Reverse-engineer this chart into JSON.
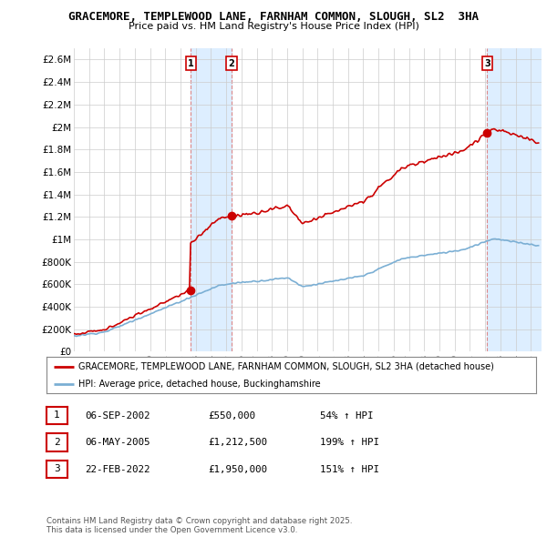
{
  "title_line1": "GRACEMORE, TEMPLEWOOD LANE, FARNHAM COMMON, SLOUGH, SL2  3HA",
  "title_line2": "Price paid vs. HM Land Registry's House Price Index (HPI)",
  "ylim": [
    0,
    2700000
  ],
  "yticks": [
    0,
    200000,
    400000,
    600000,
    800000,
    1000000,
    1200000,
    1400000,
    1600000,
    1800000,
    2000000,
    2200000,
    2400000,
    2600000
  ],
  "ytick_labels": [
    "£0",
    "£200K",
    "£400K",
    "£600K",
    "£800K",
    "£1M",
    "£1.2M",
    "£1.4M",
    "£1.6M",
    "£1.8M",
    "£2M",
    "£2.2M",
    "£2.4M",
    "£2.6M"
  ],
  "sale_color": "#cc0000",
  "hpi_color": "#7bafd4",
  "vline_color": "#dd8888",
  "shade_color": "#ddeeff",
  "background_color": "#ffffff",
  "grid_color": "#cccccc",
  "sale_times": [
    2002.68,
    2005.34,
    2022.13
  ],
  "sale_prices": [
    550000,
    1212500,
    1950000
  ],
  "sale_labels": [
    "1",
    "2",
    "3"
  ],
  "legend_entries": [
    "GRACEMORE, TEMPLEWOOD LANE, FARNHAM COMMON, SLOUGH, SL2 3HA (detached house)",
    "HPI: Average price, detached house, Buckinghamshire"
  ],
  "table_entries": [
    {
      "num": "1",
      "date": "06-SEP-2002",
      "price": "£550,000",
      "change": "54% ↑ HPI"
    },
    {
      "num": "2",
      "date": "06-MAY-2005",
      "price": "£1,212,500",
      "change": "199% ↑ HPI"
    },
    {
      "num": "3",
      "date": "22-FEB-2022",
      "price": "£1,950,000",
      "change": "151% ↑ HPI"
    }
  ],
  "footnote": "Contains HM Land Registry data © Crown copyright and database right 2025.\nThis data is licensed under the Open Government Licence v3.0.",
  "xlim_start": 1995.0,
  "xlim_end": 2025.7
}
